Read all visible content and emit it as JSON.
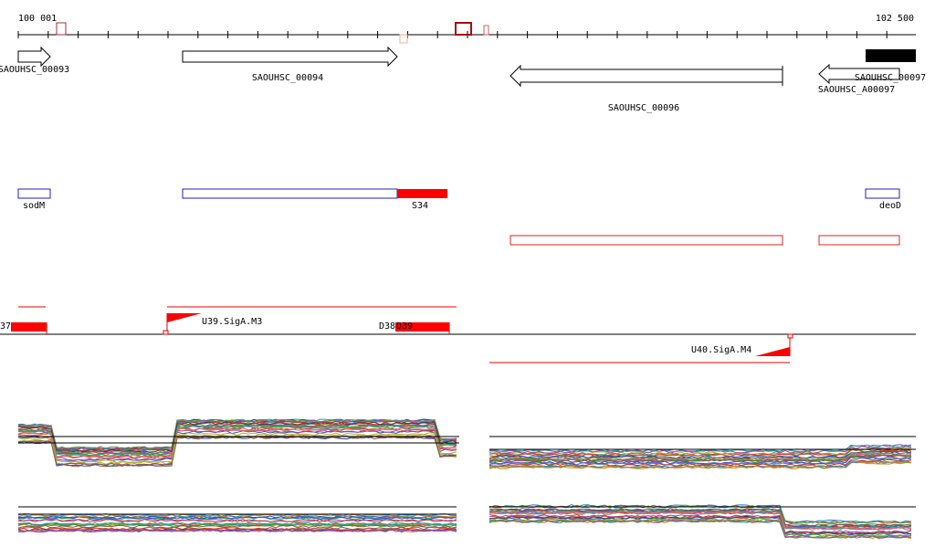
{
  "axis": {
    "start": "100 001",
    "end": "102 500"
  },
  "genes": [
    {
      "label": "SAOUHSC_00093"
    },
    {
      "label": "SAOUHSC_00094"
    },
    {
      "label": "SAOUHSC_00096"
    },
    {
      "label": "SAOUHSC_00097"
    },
    {
      "label": "SAOUHSC_A00097"
    }
  ],
  "features": [
    {
      "label": "sodM"
    },
    {
      "label": "S34"
    },
    {
      "label": "deoD"
    }
  ],
  "segments": [
    {
      "label": "37"
    },
    {
      "label": "U39.SigA.M3"
    },
    {
      "label": "D38"
    },
    {
      "label": "D39"
    },
    {
      "label": "U40.SigA.M4"
    }
  ]
}
